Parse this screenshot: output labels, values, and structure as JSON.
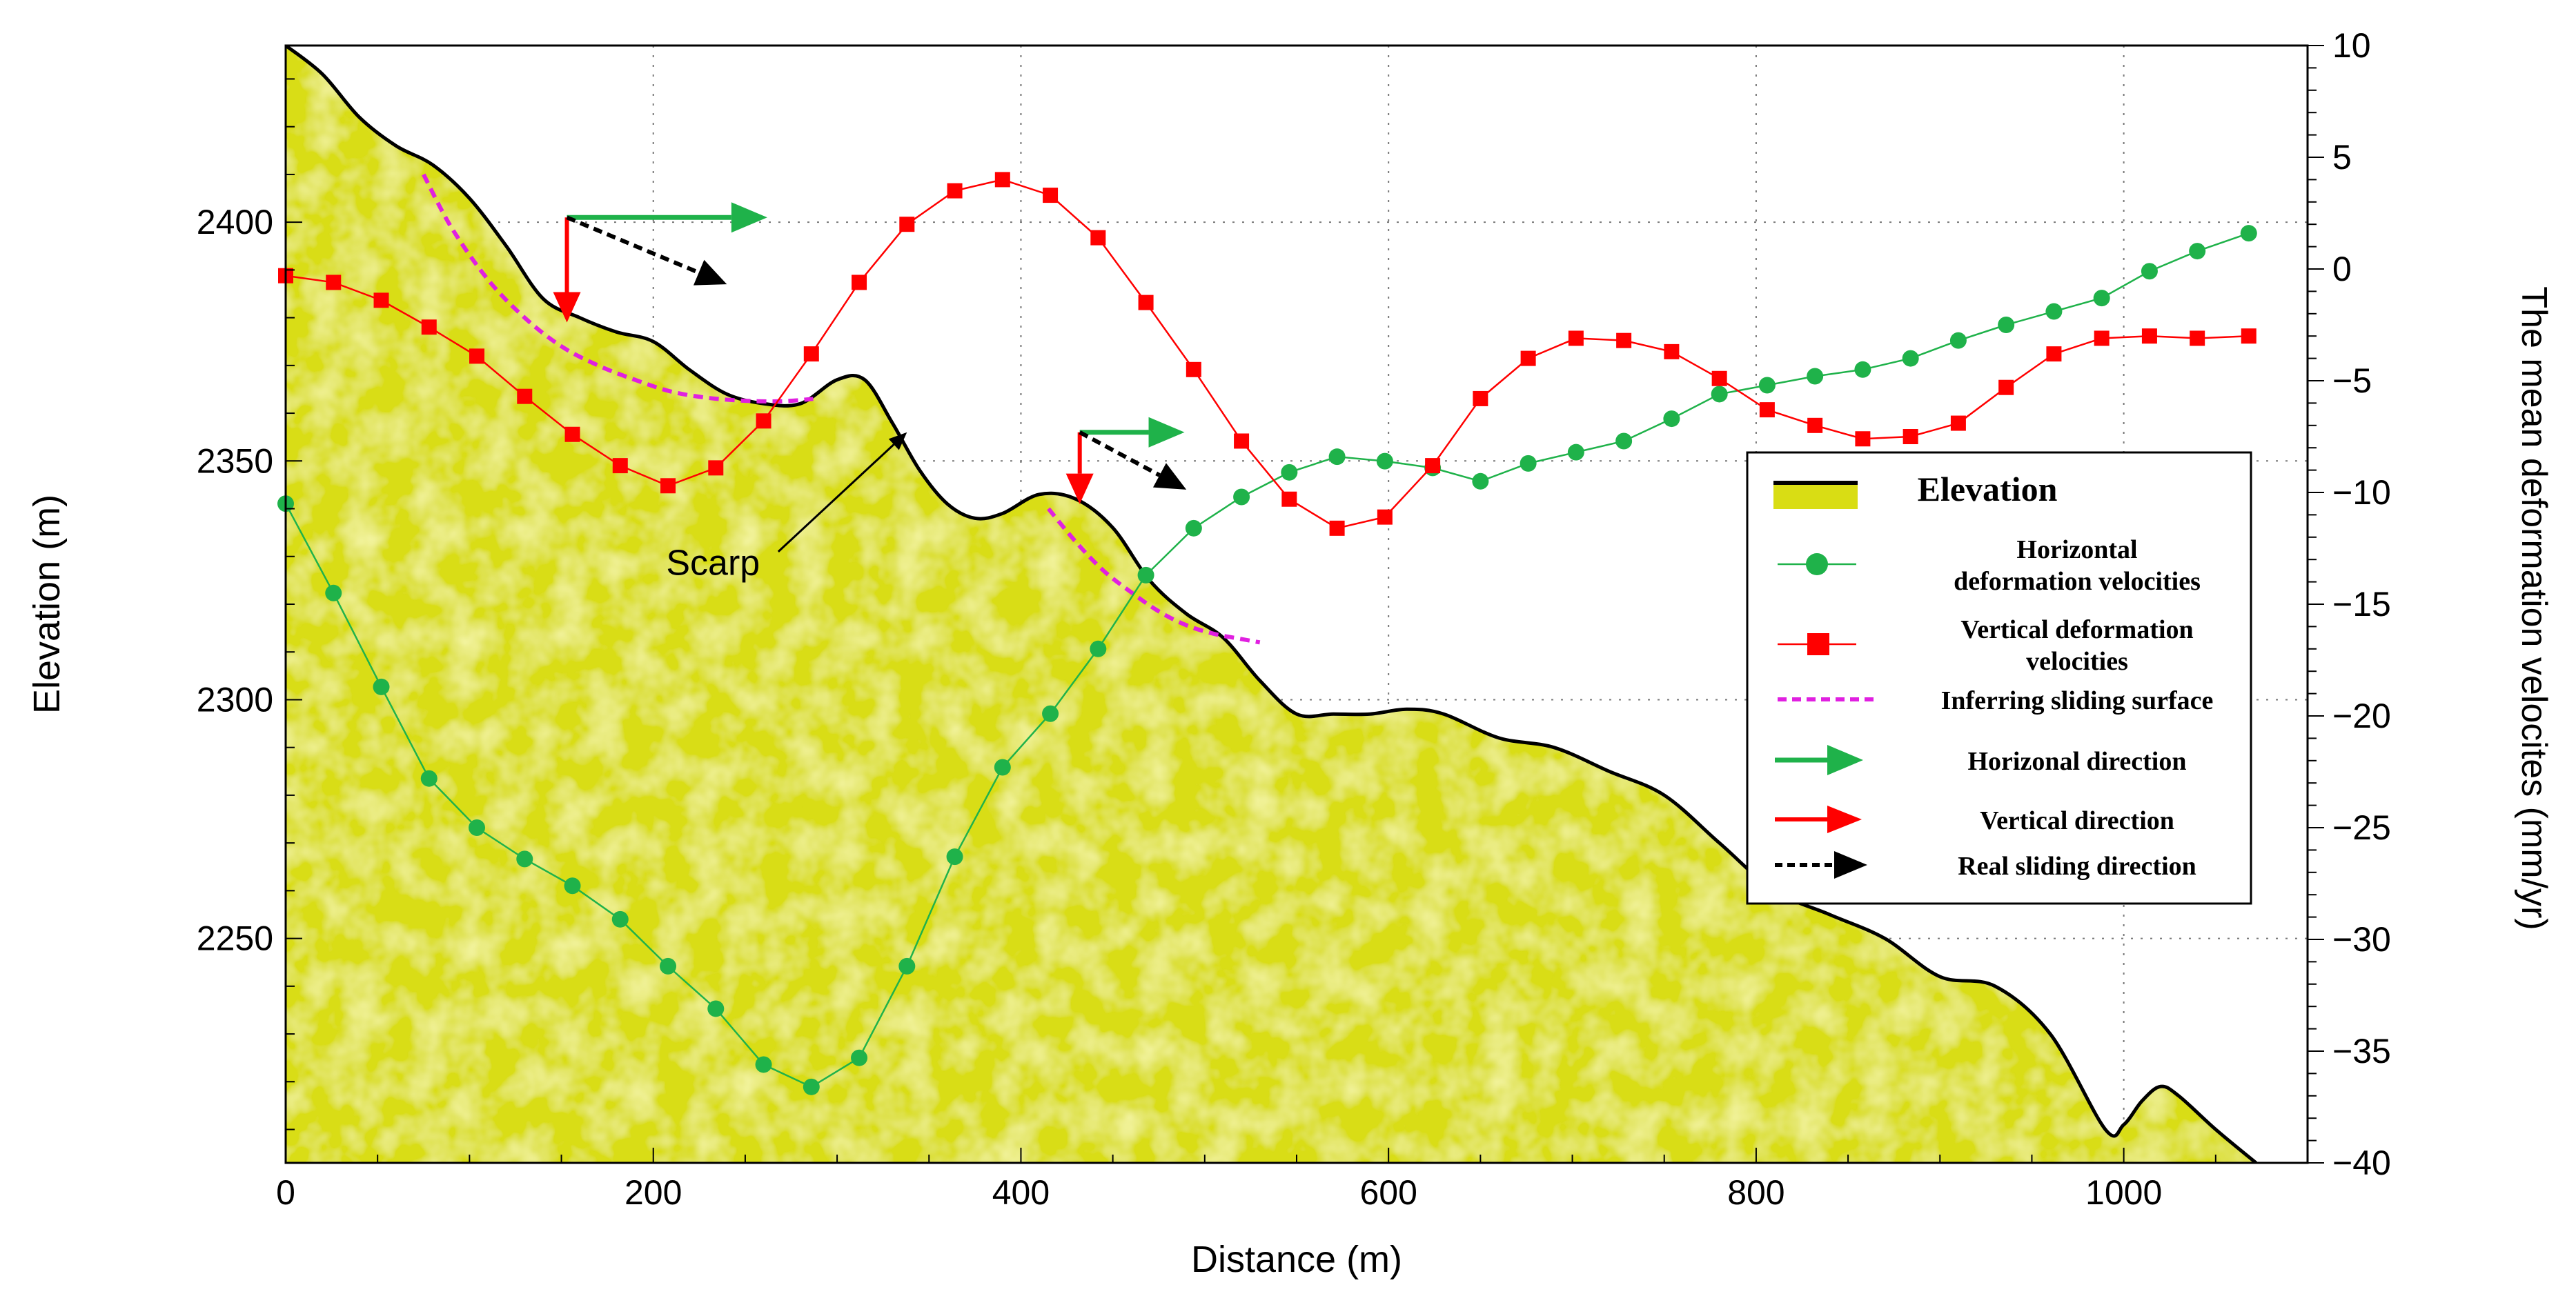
{
  "chart_data": {
    "type": "line",
    "x_axis": {
      "label": "Distance (m)",
      "range": [
        0,
        1100
      ],
      "ticks": [
        0,
        200,
        400,
        600,
        800,
        1000
      ],
      "minor_step": 50
    },
    "y_left": {
      "label": "Elevation (m)",
      "range": [
        2203,
        2437
      ],
      "ticks": [
        2250,
        2300,
        2350,
        2400
      ],
      "minor_step": 10
    },
    "y_right": {
      "label": "The mean deformation velocites (mm/yr)",
      "range": [
        -40,
        10
      ],
      "ticks": [
        -40,
        -35,
        -30,
        -25,
        -20,
        -15,
        -10,
        -5,
        0,
        5,
        10
      ],
      "minor_step": 1
    },
    "grid": "dotted",
    "colors": {
      "elevation_fill": "#d9dd14",
      "elevation_line": "#000000",
      "horizontal": "#1fb24a",
      "vertical": "#ff0000",
      "sliding_surface": "#e020e0",
      "real_direction": "#000000"
    },
    "elevation": {
      "name": "Elevation",
      "x": [
        0,
        20,
        40,
        60,
        80,
        100,
        120,
        140,
        160,
        180,
        200,
        220,
        240,
        260,
        280,
        300,
        315,
        330,
        345,
        360,
        375,
        390,
        410,
        430,
        450,
        470,
        490,
        510,
        530,
        550,
        570,
        590,
        610,
        630,
        660,
        690,
        720,
        750,
        780,
        810,
        840,
        870,
        900,
        930,
        960,
        990,
        1000,
        1010,
        1020,
        1030,
        1050,
        1072
      ],
      "y": [
        2437,
        2431,
        2422,
        2416,
        2412,
        2405,
        2395,
        2384,
        2380,
        2377,
        2375,
        2369,
        2364,
        2362,
        2362,
        2367,
        2367,
        2358,
        2348,
        2341,
        2338,
        2339,
        2343,
        2342,
        2336,
        2325,
        2318,
        2313,
        2304,
        2297,
        2297,
        2297,
        2298,
        2297,
        2292,
        2290,
        2285,
        2280,
        2270,
        2260,
        2255,
        2250,
        2242,
        2240,
        2230,
        2210,
        2211,
        2216,
        2219,
        2217,
        2210,
        2203
      ]
    },
    "series": [
      {
        "name": "Horizontal deformation velocities",
        "axis": "right",
        "marker": "circle",
        "x": [
          0,
          26,
          52,
          78,
          104,
          130,
          156,
          182,
          208,
          234,
          260,
          286,
          312,
          338,
          364,
          390,
          416,
          442,
          468,
          494,
          520,
          546,
          572,
          598,
          624,
          650,
          676,
          702,
          728,
          754,
          780,
          806,
          832,
          858,
          884,
          910,
          936,
          962,
          988,
          1014,
          1040,
          1068
        ],
        "values": [
          -10.5,
          -14.5,
          -18.7,
          -22.8,
          -25.0,
          -26.4,
          -27.6,
          -29.1,
          -31.2,
          -33.1,
          -35.6,
          -36.6,
          -35.3,
          -31.2,
          -26.3,
          -22.3,
          -19.9,
          -17.0,
          -13.7,
          -11.6,
          -10.2,
          -9.1,
          -8.4,
          -8.6,
          -8.9,
          -9.5,
          -8.7,
          -8.2,
          -7.7,
          -6.7,
          -5.6,
          -5.2,
          -4.8,
          -4.5,
          -4.0,
          -3.2,
          -2.5,
          -1.9,
          -1.3,
          -0.1,
          0.8,
          1.6
        ]
      },
      {
        "name": "Vertical deformation velocities",
        "axis": "right",
        "marker": "square",
        "x": [
          0,
          26,
          52,
          78,
          104,
          130,
          156,
          182,
          208,
          234,
          260,
          286,
          312,
          338,
          364,
          390,
          416,
          442,
          468,
          494,
          520,
          546,
          572,
          598,
          624,
          650,
          676,
          702,
          728,
          754,
          780,
          806,
          832,
          858,
          884,
          910,
          936,
          962,
          988,
          1014,
          1040,
          1068
        ],
        "values": [
          -0.3,
          -0.6,
          -1.4,
          -2.6,
          -3.9,
          -5.7,
          -7.4,
          -8.8,
          -9.7,
          -8.9,
          -6.8,
          -3.8,
          -0.6,
          2.0,
          3.5,
          4.0,
          3.3,
          1.4,
          -1.5,
          -4.5,
          -7.7,
          -10.3,
          -11.6,
          -11.1,
          -8.8,
          -5.8,
          -4.0,
          -3.1,
          -3.2,
          -3.7,
          -4.9,
          -6.3,
          -7.0,
          -7.6,
          -7.5,
          -6.9,
          -5.3,
          -3.8,
          -3.1,
          -3.0,
          -3.1,
          -3.0
        ]
      }
    ],
    "sliding_surfaces": [
      {
        "x": [
          75,
          90,
          110,
          130,
          150,
          170,
          190,
          210,
          230,
          250,
          270,
          287
        ],
        "elev": [
          2410,
          2399,
          2388,
          2380,
          2374,
          2370,
          2367,
          2364.5,
          2363.2,
          2362.6,
          2362.5,
          2363
        ]
      },
      {
        "x": [
          415,
          430,
          445,
          460,
          475,
          490,
          505,
          520,
          530
        ],
        "elev": [
          2340,
          2333,
          2327,
          2322.5,
          2318.5,
          2315.6,
          2313.8,
          2312.7,
          2312
        ]
      }
    ],
    "direction_arrows": [
      {
        "origin": [
          153,
          2401
        ],
        "horizontal_end": [
          262,
          2401
        ],
        "vertical_end": [
          153,
          2379
        ],
        "real_end": [
          240,
          2387
        ]
      },
      {
        "origin": [
          432,
          2356
        ],
        "horizontal_end": [
          489,
          2356
        ],
        "vertical_end": [
          432,
          2341
        ],
        "real_end": [
          490,
          2344
        ]
      }
    ],
    "annotations": [
      {
        "text": "Scarp",
        "x": 258,
        "elev": 2329,
        "arrow_from": [
          268,
          2331
        ],
        "arrow_to": [
          338,
          2356
        ]
      }
    ],
    "legend": {
      "position": "right",
      "items": [
        {
          "key": "elevation",
          "label_lines": [
            "Elevation"
          ]
        },
        {
          "key": "horizontal",
          "label_lines": [
            "Horizontal",
            "deformation velocities"
          ]
        },
        {
          "key": "vertical",
          "label_lines": [
            "Vertical deformation",
            "velocities"
          ]
        },
        {
          "key": "surface",
          "label_lines": [
            "Inferring sliding surface"
          ]
        },
        {
          "key": "h_dir",
          "label_lines": [
            "Horizonal direction"
          ]
        },
        {
          "key": "v_dir",
          "label_lines": [
            "Vertical direction"
          ]
        },
        {
          "key": "r_dir",
          "label_lines": [
            "Real sliding direction"
          ]
        }
      ]
    }
  }
}
